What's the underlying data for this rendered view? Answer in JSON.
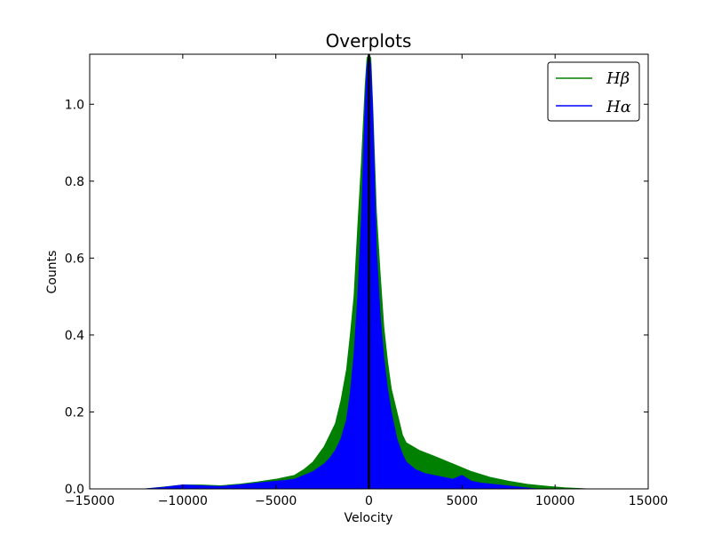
{
  "chart_data": {
    "type": "area",
    "title": "Overplots",
    "xlabel": "Velocity",
    "ylabel": "Counts",
    "xlim": [
      -15000,
      15000
    ],
    "ylim": [
      0,
      1.13
    ],
    "xticks": [
      -15000,
      -10000,
      -5000,
      0,
      5000,
      10000,
      15000
    ],
    "xtick_labels": [
      "−15000",
      "−10000",
      "−5000",
      "0",
      "5000",
      "10000",
      "15000"
    ],
    "yticks": [
      0,
      0.2,
      0.4,
      0.6,
      0.8,
      1.0
    ],
    "ytick_labels": [
      "0.0",
      "0.2",
      "0.4",
      "0.6",
      "0.8",
      "1.0"
    ],
    "grid": false,
    "legend_position": "top-right",
    "vline_x": 0,
    "vline_color": "#000000",
    "series": [
      {
        "name": "Hβ",
        "color": "#008000",
        "x": [
          -12000,
          -11000,
          -10000,
          -9000,
          -8000,
          -7000,
          -6000,
          -5000,
          -4500,
          -4000,
          -3500,
          -3000,
          -2700,
          -2400,
          -2100,
          -1800,
          -1500,
          -1200,
          -1000,
          -800,
          -600,
          -400,
          -300,
          -200,
          -100,
          0,
          100,
          200,
          300,
          400,
          600,
          800,
          1000,
          1200,
          1500,
          1800,
          2000,
          2700,
          3500,
          4500,
          5500,
          6500,
          7500,
          8500,
          9500,
          10500,
          11700
        ],
        "y": [
          0.0,
          0.005,
          0.01,
          0.01,
          0.008,
          0.012,
          0.018,
          0.025,
          0.03,
          0.035,
          0.05,
          0.07,
          0.09,
          0.11,
          0.14,
          0.17,
          0.23,
          0.31,
          0.4,
          0.5,
          0.68,
          0.85,
          0.95,
          1.05,
          1.12,
          1.13,
          1.12,
          1.0,
          0.86,
          0.72,
          0.56,
          0.42,
          0.33,
          0.26,
          0.2,
          0.14,
          0.12,
          0.1,
          0.085,
          0.065,
          0.045,
          0.03,
          0.02,
          0.012,
          0.007,
          0.003,
          0.0
        ]
      },
      {
        "name": "Hα",
        "color": "#0000ff",
        "x": [
          -12000,
          -11000,
          -10000,
          -9000,
          -8000,
          -7000,
          -6000,
          -5000,
          -4500,
          -4000,
          -3500,
          -3000,
          -2700,
          -2400,
          -2100,
          -1800,
          -1500,
          -1200,
          -1000,
          -800,
          -600,
          -400,
          -300,
          -200,
          -100,
          0,
          100,
          200,
          300,
          400,
          600,
          800,
          1000,
          1200,
          1500,
          1800,
          2000,
          2500,
          3000,
          3500,
          4000,
          4500,
          5000,
          5500,
          6000,
          7000,
          8000,
          9000
        ],
        "y": [
          0.0,
          0.004,
          0.01,
          0.008,
          0.006,
          0.01,
          0.015,
          0.02,
          0.022,
          0.025,
          0.035,
          0.045,
          0.055,
          0.065,
          0.08,
          0.1,
          0.13,
          0.18,
          0.25,
          0.35,
          0.5,
          0.7,
          0.85,
          1.0,
          1.1,
          1.13,
          1.1,
          0.98,
          0.8,
          0.62,
          0.45,
          0.34,
          0.26,
          0.2,
          0.13,
          0.09,
          0.07,
          0.05,
          0.04,
          0.035,
          0.03,
          0.025,
          0.035,
          0.02,
          0.015,
          0.01,
          0.005,
          0.0
        ]
      }
    ]
  }
}
